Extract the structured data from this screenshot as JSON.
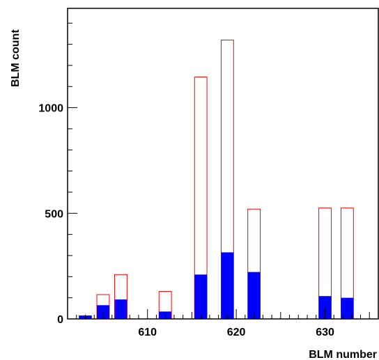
{
  "chart_data": {
    "type": "bar",
    "xlabel": "BLM number",
    "ylabel": "BLM count",
    "xlim": [
      601,
      636
    ],
    "ylim": [
      0,
      1470
    ],
    "x_ticks": [
      610,
      620,
      630
    ],
    "y_ticks": [
      0,
      500,
      1000
    ],
    "bin_width": 1.4,
    "series": [
      {
        "style": "outline",
        "color": "#ff0000",
        "points": [
          {
            "x": 603,
            "y": 15
          },
          {
            "x": 605,
            "y": 115
          },
          {
            "x": 607,
            "y": 210
          },
          {
            "x": 612,
            "y": 130
          },
          {
            "x": 616,
            "y": 1145
          },
          {
            "x": 619,
            "y": 1320
          },
          {
            "x": 622,
            "y": 520
          },
          {
            "x": 630,
            "y": 525
          },
          {
            "x": 632.5,
            "y": 525
          }
        ]
      },
      {
        "style": "filled",
        "color": "#0000ff",
        "points": [
          {
            "x": 603,
            "y": 15
          },
          {
            "x": 605,
            "y": 65
          },
          {
            "x": 607,
            "y": 92
          },
          {
            "x": 612,
            "y": 35
          },
          {
            "x": 616,
            "y": 210
          },
          {
            "x": 619,
            "y": 315
          },
          {
            "x": 622,
            "y": 222
          },
          {
            "x": 630,
            "y": 108
          },
          {
            "x": 632.5,
            "y": 100
          }
        ]
      }
    ]
  }
}
